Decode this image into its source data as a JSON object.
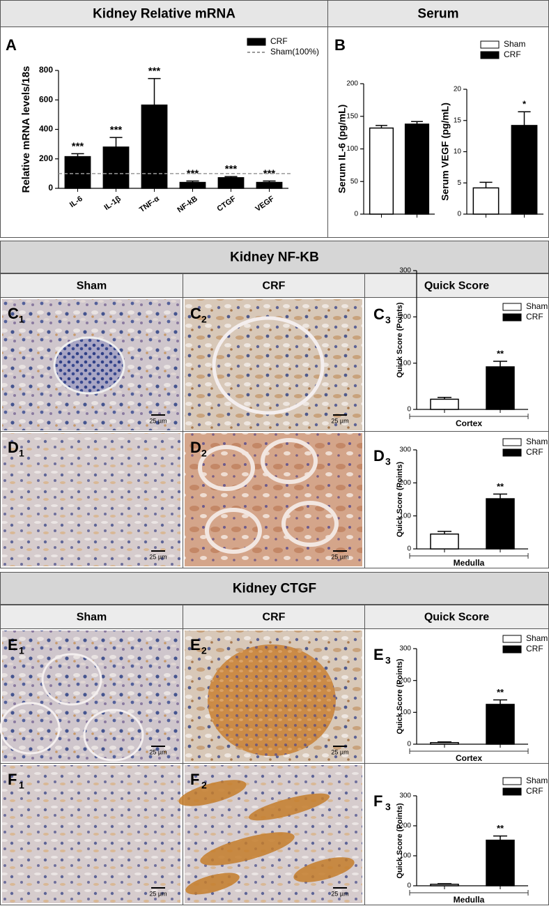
{
  "headers": {
    "mrna": "Kidney Relative mRNA",
    "serum": "Serum",
    "nfkb": "Kidney NF-KB",
    "ctgf": "Kidney CTGF"
  },
  "columns": [
    "Sham",
    "CRF",
    "Quick Score"
  ],
  "scale_bar": "25 µm",
  "micrographs": [
    {
      "label": "C",
      "sub": "1"
    },
    {
      "label": "C",
      "sub": "2"
    },
    {
      "label": "D",
      "sub": "1"
    },
    {
      "label": "D",
      "sub": "2"
    },
    {
      "label": "E",
      "sub": "1"
    },
    {
      "label": "E",
      "sub": "2"
    },
    {
      "label": "F",
      "sub": "1"
    },
    {
      "label": "F",
      "sub": "2"
    }
  ],
  "chart_data": [
    {
      "type": "bar",
      "panel": "A",
      "ylabel": "Relative mRNA levels/18s",
      "categories": [
        "IL-6",
        "IL-1β",
        "TNF-α",
        "NF-kB",
        "CTGF",
        "VEGF"
      ],
      "series": [
        {
          "name": "CRF",
          "color": "#000000",
          "values": [
            215,
            280,
            565,
            40,
            72,
            40
          ],
          "errors": [
            20,
            65,
            180,
            10,
            8,
            10
          ],
          "significance": [
            "***",
            "***",
            "***",
            "***",
            "***",
            "***"
          ]
        }
      ],
      "reference": {
        "name": "Sham(100%)",
        "value": 100,
        "color": "#999999"
      },
      "ylim": [
        0,
        800
      ],
      "yticks": [
        0,
        200,
        400,
        600,
        800
      ],
      "legend": true
    },
    {
      "type": "bar",
      "panel": "B",
      "ylabel": "Serum IL-6 (pg/mL)",
      "categories": [
        null
      ],
      "series": [
        {
          "color": "#ffffff",
          "values": [
            132
          ],
          "errors": [
            4
          ]
        },
        {
          "color": "#000000",
          "values": [
            138
          ],
          "errors": [
            4
          ]
        }
      ],
      "ylim": [
        0,
        200
      ],
      "yticks": [
        0,
        50,
        100,
        150,
        200
      ],
      "legend": false
    },
    {
      "type": "bar",
      "ylabel": "Serum VEGF (pg/mL)",
      "categories": [
        null
      ],
      "series": [
        {
          "name": "Sham",
          "color": "#ffffff",
          "values": [
            4.2
          ],
          "errors": [
            0.9
          ]
        },
        {
          "name": "CRF",
          "color": "#000000",
          "values": [
            14.2
          ],
          "errors": [
            2.2
          ],
          "significance": [
            "*"
          ]
        }
      ],
      "ylim": [
        0,
        20
      ],
      "yticks": [
        0,
        5,
        10,
        15,
        20
      ],
      "legend": true
    },
    {
      "type": "bar",
      "panel": "C",
      "panel_sub": "3",
      "ylabel": "Quick Score (Points)",
      "categories": [
        "Cortex"
      ],
      "series": [
        {
          "name": "Sham",
          "color": "#ffffff",
          "values": [
            22
          ],
          "errors": [
            4
          ]
        },
        {
          "name": "CRF",
          "color": "#000000",
          "values": [
            92
          ],
          "errors": [
            12
          ],
          "significance": [
            "**"
          ]
        }
      ],
      "ylim": [
        0,
        300
      ],
      "yticks": [
        0,
        100,
        200,
        300
      ],
      "legend": true
    },
    {
      "type": "bar",
      "panel": "D",
      "panel_sub": "3",
      "ylabel": "Quick Score (Points)",
      "categories": [
        "Medulla"
      ],
      "series": [
        {
          "name": "Sham",
          "color": "#ffffff",
          "values": [
            45
          ],
          "errors": [
            8
          ]
        },
        {
          "name": "CRF",
          "color": "#000000",
          "values": [
            152
          ],
          "errors": [
            14
          ],
          "significance": [
            "**"
          ]
        }
      ],
      "ylim": [
        0,
        300
      ],
      "yticks": [
        0,
        100,
        200,
        300
      ],
      "legend": true
    },
    {
      "type": "bar",
      "panel": "E",
      "panel_sub": "3",
      "ylabel": "Quick Score (Points)",
      "categories": [
        "Cortex"
      ],
      "series": [
        {
          "name": "Sham",
          "color": "#ffffff",
          "values": [
            5
          ],
          "errors": [
            2
          ]
        },
        {
          "name": "CRF",
          "color": "#000000",
          "values": [
            125
          ],
          "errors": [
            14
          ],
          "significance": [
            "**"
          ]
        }
      ],
      "ylim": [
        0,
        300
      ],
      "yticks": [
        0,
        100,
        200,
        300
      ],
      "legend": true
    },
    {
      "type": "bar",
      "panel": "F",
      "panel_sub": "3",
      "ylabel": "Quick Score (Points)",
      "categories": [
        "Medulla"
      ],
      "series": [
        {
          "name": "Sham",
          "color": "#ffffff",
          "values": [
            5
          ],
          "errors": [
            2
          ]
        },
        {
          "name": "CRF",
          "color": "#000000",
          "values": [
            152
          ],
          "errors": [
            14
          ],
          "significance": [
            "**"
          ]
        }
      ],
      "ylim": [
        0,
        300
      ],
      "yticks": [
        0,
        100,
        200,
        300
      ],
      "legend": true
    }
  ]
}
